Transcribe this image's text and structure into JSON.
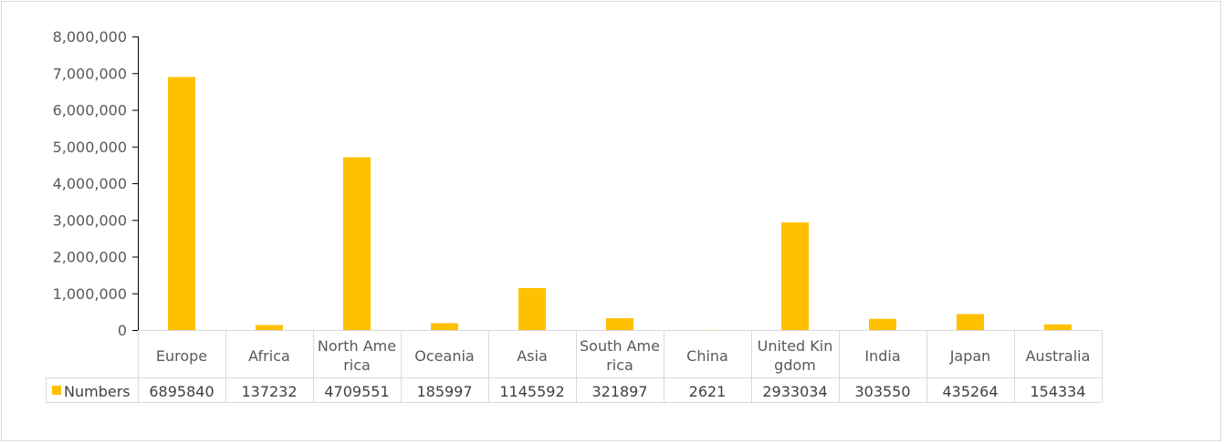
{
  "chart_data": {
    "type": "bar",
    "categories": [
      "Europe",
      "Africa",
      "North America",
      "Oceania",
      "Asia",
      "South America",
      "China",
      "United Kingdom",
      "India",
      "Japan",
      "Australia"
    ],
    "category_display": [
      [
        "Europe"
      ],
      [
        "Africa"
      ],
      [
        "North Ame",
        "rica"
      ],
      [
        "Oceania"
      ],
      [
        "Asia"
      ],
      [
        "South Ame",
        "rica"
      ],
      [
        "China"
      ],
      [
        "United Kin",
        "gdom"
      ],
      [
        "India"
      ],
      [
        "Japan"
      ],
      [
        "Australia"
      ]
    ],
    "series": [
      {
        "name": "Numbers",
        "values": [
          6895840,
          137232,
          4709551,
          185997,
          1145592,
          321897,
          2621,
          2933034,
          303550,
          435264,
          154334
        ],
        "color": "#ffc000"
      }
    ],
    "value_labels": [
      "6895840",
      "137232",
      "4709551",
      "185997",
      "1145592",
      "321897",
      "2621",
      "2933034",
      "303550",
      "435264",
      "154334"
    ],
    "ylim": [
      0,
      8000000
    ],
    "yticks": [
      "0",
      "1,000,000",
      "2,000,000",
      "3,000,000",
      "4,000,000",
      "5,000,000",
      "6,000,000",
      "7,000,000",
      "8,000,000"
    ],
    "title": "",
    "xlabel": "",
    "ylabel": "",
    "legend": "data-table",
    "grid": false
  }
}
